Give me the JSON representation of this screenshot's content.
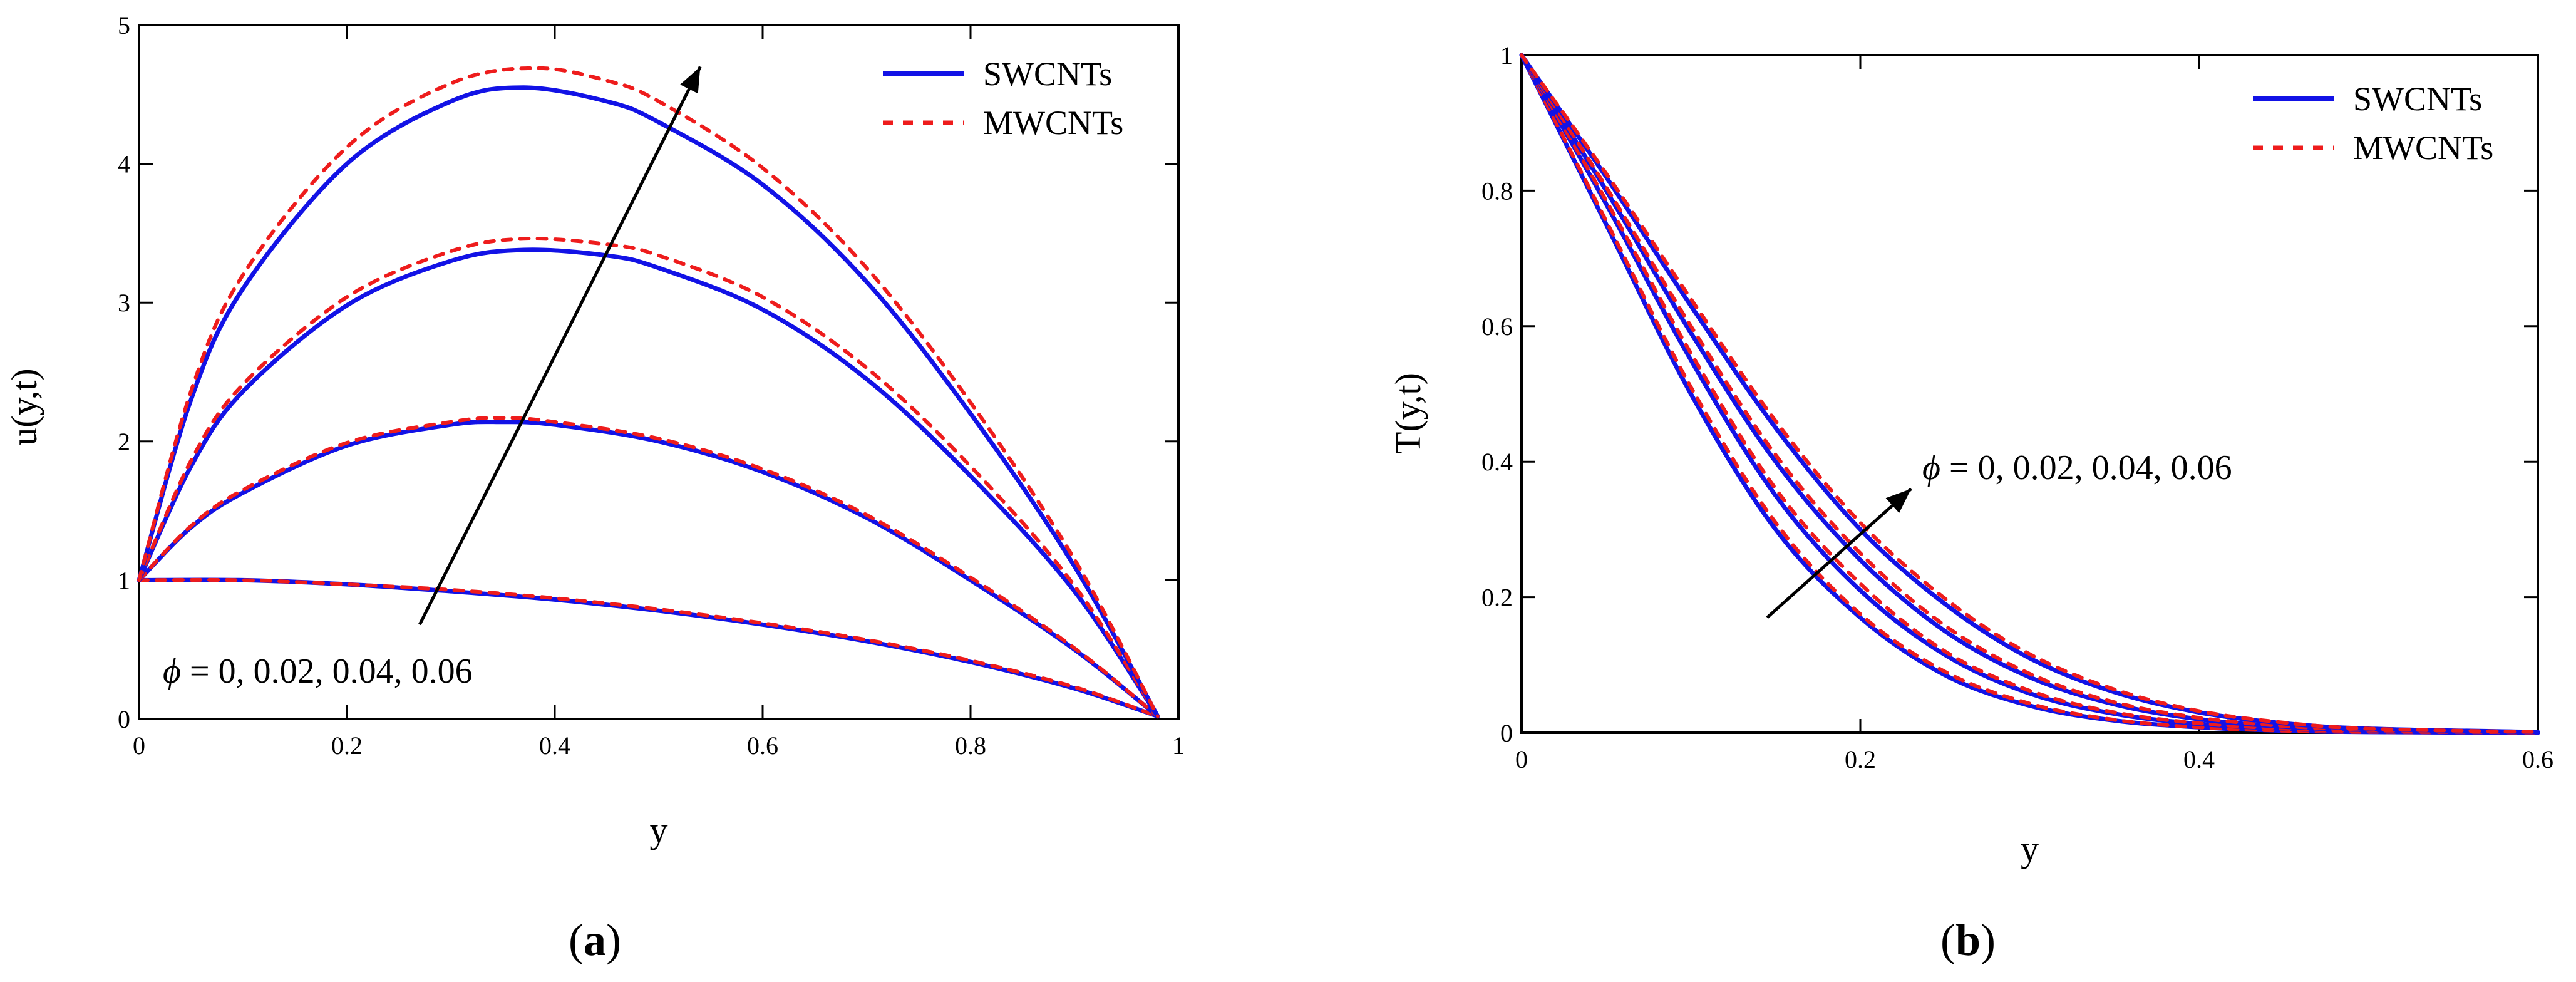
{
  "colors": {
    "swcnt": "#1212e6",
    "mwcnt": "#ee1c1c",
    "axis": "#000000",
    "arrow": "#000000"
  },
  "chart_data": [
    {
      "type": "line",
      "panel": "a",
      "panel_label": "a",
      "xlabel": "y",
      "ylabel": "u(y,t)",
      "xlim": [
        0,
        1
      ],
      "ylim": [
        0,
        5
      ],
      "xticks": [
        0,
        0.2,
        0.4,
        0.6,
        0.8,
        1
      ],
      "xtick_labels": [
        "0",
        "0.2",
        "0.4",
        "0.6",
        "0.8",
        "1"
      ],
      "yticks": [
        0,
        1,
        2,
        3,
        4,
        5
      ],
      "ytick_labels": [
        "0",
        "1",
        "2",
        "3",
        "4",
        "5"
      ],
      "legend": {
        "position": "top-right",
        "entries": [
          {
            "label": "SWCNTs",
            "style": "solid",
            "color": "#1212e6"
          },
          {
            "label": "MWCNTs",
            "style": "dotted",
            "color": "#ee1c1c"
          }
        ]
      },
      "annotation": {
        "symbol": "ϕ",
        "text": " = 0, 0.02, 0.04, 0.06",
        "arrow_from": [
          0.27,
          0.68
        ],
        "arrow_to": [
          0.54,
          4.7
        ]
      },
      "curves": [
        {
          "name": "SWCNTs",
          "phi": 0,
          "style": "solid",
          "x": [
            0,
            0.1,
            0.2,
            0.3,
            0.4,
            0.5,
            0.6,
            0.7,
            0.8,
            0.9,
            0.98
          ],
          "y": [
            1.0,
            1.0,
            0.97,
            0.92,
            0.86,
            0.78,
            0.68,
            0.56,
            0.41,
            0.22,
            0.02
          ]
        },
        {
          "name": "MWCNTs",
          "phi": 0,
          "style": "dotted",
          "x": [
            0,
            0.1,
            0.2,
            0.3,
            0.4,
            0.5,
            0.6,
            0.7,
            0.8,
            0.9,
            0.98
          ],
          "y": [
            1.0,
            1.0,
            0.97,
            0.93,
            0.87,
            0.79,
            0.69,
            0.57,
            0.42,
            0.23,
            0.02
          ]
        },
        {
          "name": "SWCNTs",
          "phi": 0.02,
          "style": "solid",
          "x": [
            0,
            0.05,
            0.1,
            0.2,
            0.3,
            0.35,
            0.4,
            0.5,
            0.6,
            0.7,
            0.8,
            0.9,
            0.98
          ],
          "y": [
            1.0,
            1.38,
            1.63,
            1.97,
            2.12,
            2.14,
            2.12,
            2.0,
            1.78,
            1.45,
            1.0,
            0.5,
            0.02
          ]
        },
        {
          "name": "MWCNTs",
          "phi": 0.02,
          "style": "dotted",
          "x": [
            0,
            0.05,
            0.1,
            0.2,
            0.3,
            0.35,
            0.4,
            0.5,
            0.6,
            0.7,
            0.8,
            0.9,
            0.98
          ],
          "y": [
            1.0,
            1.39,
            1.65,
            1.99,
            2.14,
            2.17,
            2.14,
            2.02,
            1.8,
            1.47,
            1.02,
            0.51,
            0.02
          ]
        },
        {
          "name": "SWCNTs",
          "phi": 0.04,
          "style": "solid",
          "x": [
            0,
            0.05,
            0.1,
            0.2,
            0.3,
            0.37,
            0.45,
            0.5,
            0.6,
            0.7,
            0.8,
            0.9,
            0.98
          ],
          "y": [
            1.0,
            1.82,
            2.36,
            2.98,
            3.3,
            3.38,
            3.34,
            3.25,
            2.95,
            2.45,
            1.75,
            0.92,
            0.02
          ]
        },
        {
          "name": "MWCNTs",
          "phi": 0.04,
          "style": "dotted",
          "x": [
            0,
            0.05,
            0.1,
            0.2,
            0.3,
            0.37,
            0.45,
            0.5,
            0.6,
            0.7,
            0.8,
            0.9,
            0.98
          ],
          "y": [
            1.0,
            1.86,
            2.41,
            3.04,
            3.37,
            3.46,
            3.42,
            3.34,
            3.04,
            2.53,
            1.82,
            0.96,
            0.02
          ]
        },
        {
          "name": "SWCNTs",
          "phi": 0.06,
          "style": "solid",
          "x": [
            0,
            0.05,
            0.1,
            0.2,
            0.3,
            0.37,
            0.45,
            0.5,
            0.6,
            0.7,
            0.8,
            0.9,
            0.98
          ],
          "y": [
            1.0,
            2.3,
            3.1,
            4.0,
            4.45,
            4.55,
            4.45,
            4.3,
            3.85,
            3.15,
            2.2,
            1.1,
            0.02
          ]
        },
        {
          "name": "MWCNTs",
          "phi": 0.06,
          "style": "dotted",
          "x": [
            0,
            0.05,
            0.1,
            0.2,
            0.3,
            0.38,
            0.45,
            0.5,
            0.6,
            0.7,
            0.8,
            0.9,
            0.98
          ],
          "y": [
            1.0,
            2.36,
            3.2,
            4.12,
            4.58,
            4.69,
            4.6,
            4.45,
            3.97,
            3.25,
            2.28,
            1.15,
            0.02
          ]
        }
      ]
    },
    {
      "type": "line",
      "panel": "b",
      "panel_label": "b",
      "xlabel": "y",
      "ylabel": "T(y,t)",
      "xlim": [
        0,
        0.6
      ],
      "ylim": [
        0,
        1
      ],
      "xticks": [
        0,
        0.2,
        0.4,
        0.6
      ],
      "xtick_labels": [
        "0",
        "0.2",
        "0.4",
        "0.6"
      ],
      "yticks": [
        0,
        0.2,
        0.4,
        0.6,
        0.8,
        1
      ],
      "ytick_labels": [
        "0",
        "0.2",
        "0.4",
        "0.6",
        "0.8",
        "1"
      ],
      "legend": {
        "position": "top-right",
        "entries": [
          {
            "label": "SWCNTs",
            "style": "solid",
            "color": "#1212e6"
          },
          {
            "label": "MWCNTs",
            "style": "dotted",
            "color": "#ee1c1c"
          }
        ]
      },
      "annotation": {
        "symbol": "ϕ",
        "text": " = 0, 0.02, 0.04, 0.06",
        "arrow_from": [
          0.145,
          0.17
        ],
        "arrow_to": [
          0.23,
          0.36
        ]
      },
      "curves": [
        {
          "name": "SWCNTs",
          "phi": 0,
          "style": "solid",
          "x": [
            0,
            0.05,
            0.1,
            0.15,
            0.2,
            0.25,
            0.3,
            0.35,
            0.4,
            0.45,
            0.5,
            0.6
          ],
          "y": [
            1.0,
            0.75,
            0.5,
            0.3,
            0.17,
            0.085,
            0.04,
            0.018,
            0.008,
            0.003,
            0.001,
            0.0
          ]
        },
        {
          "name": "MWCNTs",
          "phi": 0,
          "style": "dotted",
          "x": [
            0,
            0.05,
            0.1,
            0.15,
            0.2,
            0.25,
            0.3,
            0.35,
            0.4,
            0.45,
            0.5,
            0.6
          ],
          "y": [
            1.0,
            0.755,
            0.51,
            0.31,
            0.175,
            0.09,
            0.043,
            0.019,
            0.008,
            0.003,
            0.001,
            0.0
          ]
        },
        {
          "name": "SWCNTs",
          "phi": 0.02,
          "style": "solid",
          "x": [
            0,
            0.05,
            0.1,
            0.15,
            0.2,
            0.25,
            0.3,
            0.35,
            0.4,
            0.45,
            0.5,
            0.6
          ],
          "y": [
            1.0,
            0.78,
            0.55,
            0.35,
            0.21,
            0.115,
            0.058,
            0.028,
            0.013,
            0.006,
            0.002,
            0.0
          ]
        },
        {
          "name": "MWCNTs",
          "phi": 0.02,
          "style": "dotted",
          "x": [
            0,
            0.05,
            0.1,
            0.15,
            0.2,
            0.25,
            0.3,
            0.35,
            0.4,
            0.45,
            0.5,
            0.6
          ],
          "y": [
            1.0,
            0.785,
            0.56,
            0.36,
            0.22,
            0.12,
            0.062,
            0.03,
            0.014,
            0.006,
            0.002,
            0.0
          ]
        },
        {
          "name": "SWCNTs",
          "phi": 0.04,
          "style": "solid",
          "x": [
            0,
            0.05,
            0.1,
            0.15,
            0.2,
            0.25,
            0.3,
            0.35,
            0.4,
            0.45,
            0.5,
            0.6
          ],
          "y": [
            1.0,
            0.8,
            0.59,
            0.4,
            0.255,
            0.15,
            0.082,
            0.042,
            0.02,
            0.009,
            0.004,
            0.0
          ]
        },
        {
          "name": "MWCNTs",
          "phi": 0.04,
          "style": "dotted",
          "x": [
            0,
            0.05,
            0.1,
            0.15,
            0.2,
            0.25,
            0.3,
            0.35,
            0.4,
            0.45,
            0.5,
            0.6
          ],
          "y": [
            1.0,
            0.805,
            0.6,
            0.41,
            0.265,
            0.158,
            0.087,
            0.045,
            0.022,
            0.01,
            0.004,
            0.0
          ]
        },
        {
          "name": "SWCNTs",
          "phi": 0.06,
          "style": "solid",
          "x": [
            0,
            0.05,
            0.1,
            0.15,
            0.2,
            0.25,
            0.3,
            0.35,
            0.4,
            0.45,
            0.5,
            0.6
          ],
          "y": [
            1.0,
            0.82,
            0.63,
            0.45,
            0.3,
            0.19,
            0.11,
            0.06,
            0.03,
            0.014,
            0.006,
            0.001
          ]
        },
        {
          "name": "MWCNTs",
          "phi": 0.06,
          "style": "dotted",
          "x": [
            0,
            0.05,
            0.1,
            0.15,
            0.2,
            0.25,
            0.3,
            0.35,
            0.4,
            0.45,
            0.5,
            0.6
          ],
          "y": [
            1.0,
            0.825,
            0.64,
            0.46,
            0.31,
            0.198,
            0.116,
            0.064,
            0.032,
            0.015,
            0.006,
            0.001
          ]
        }
      ]
    }
  ]
}
